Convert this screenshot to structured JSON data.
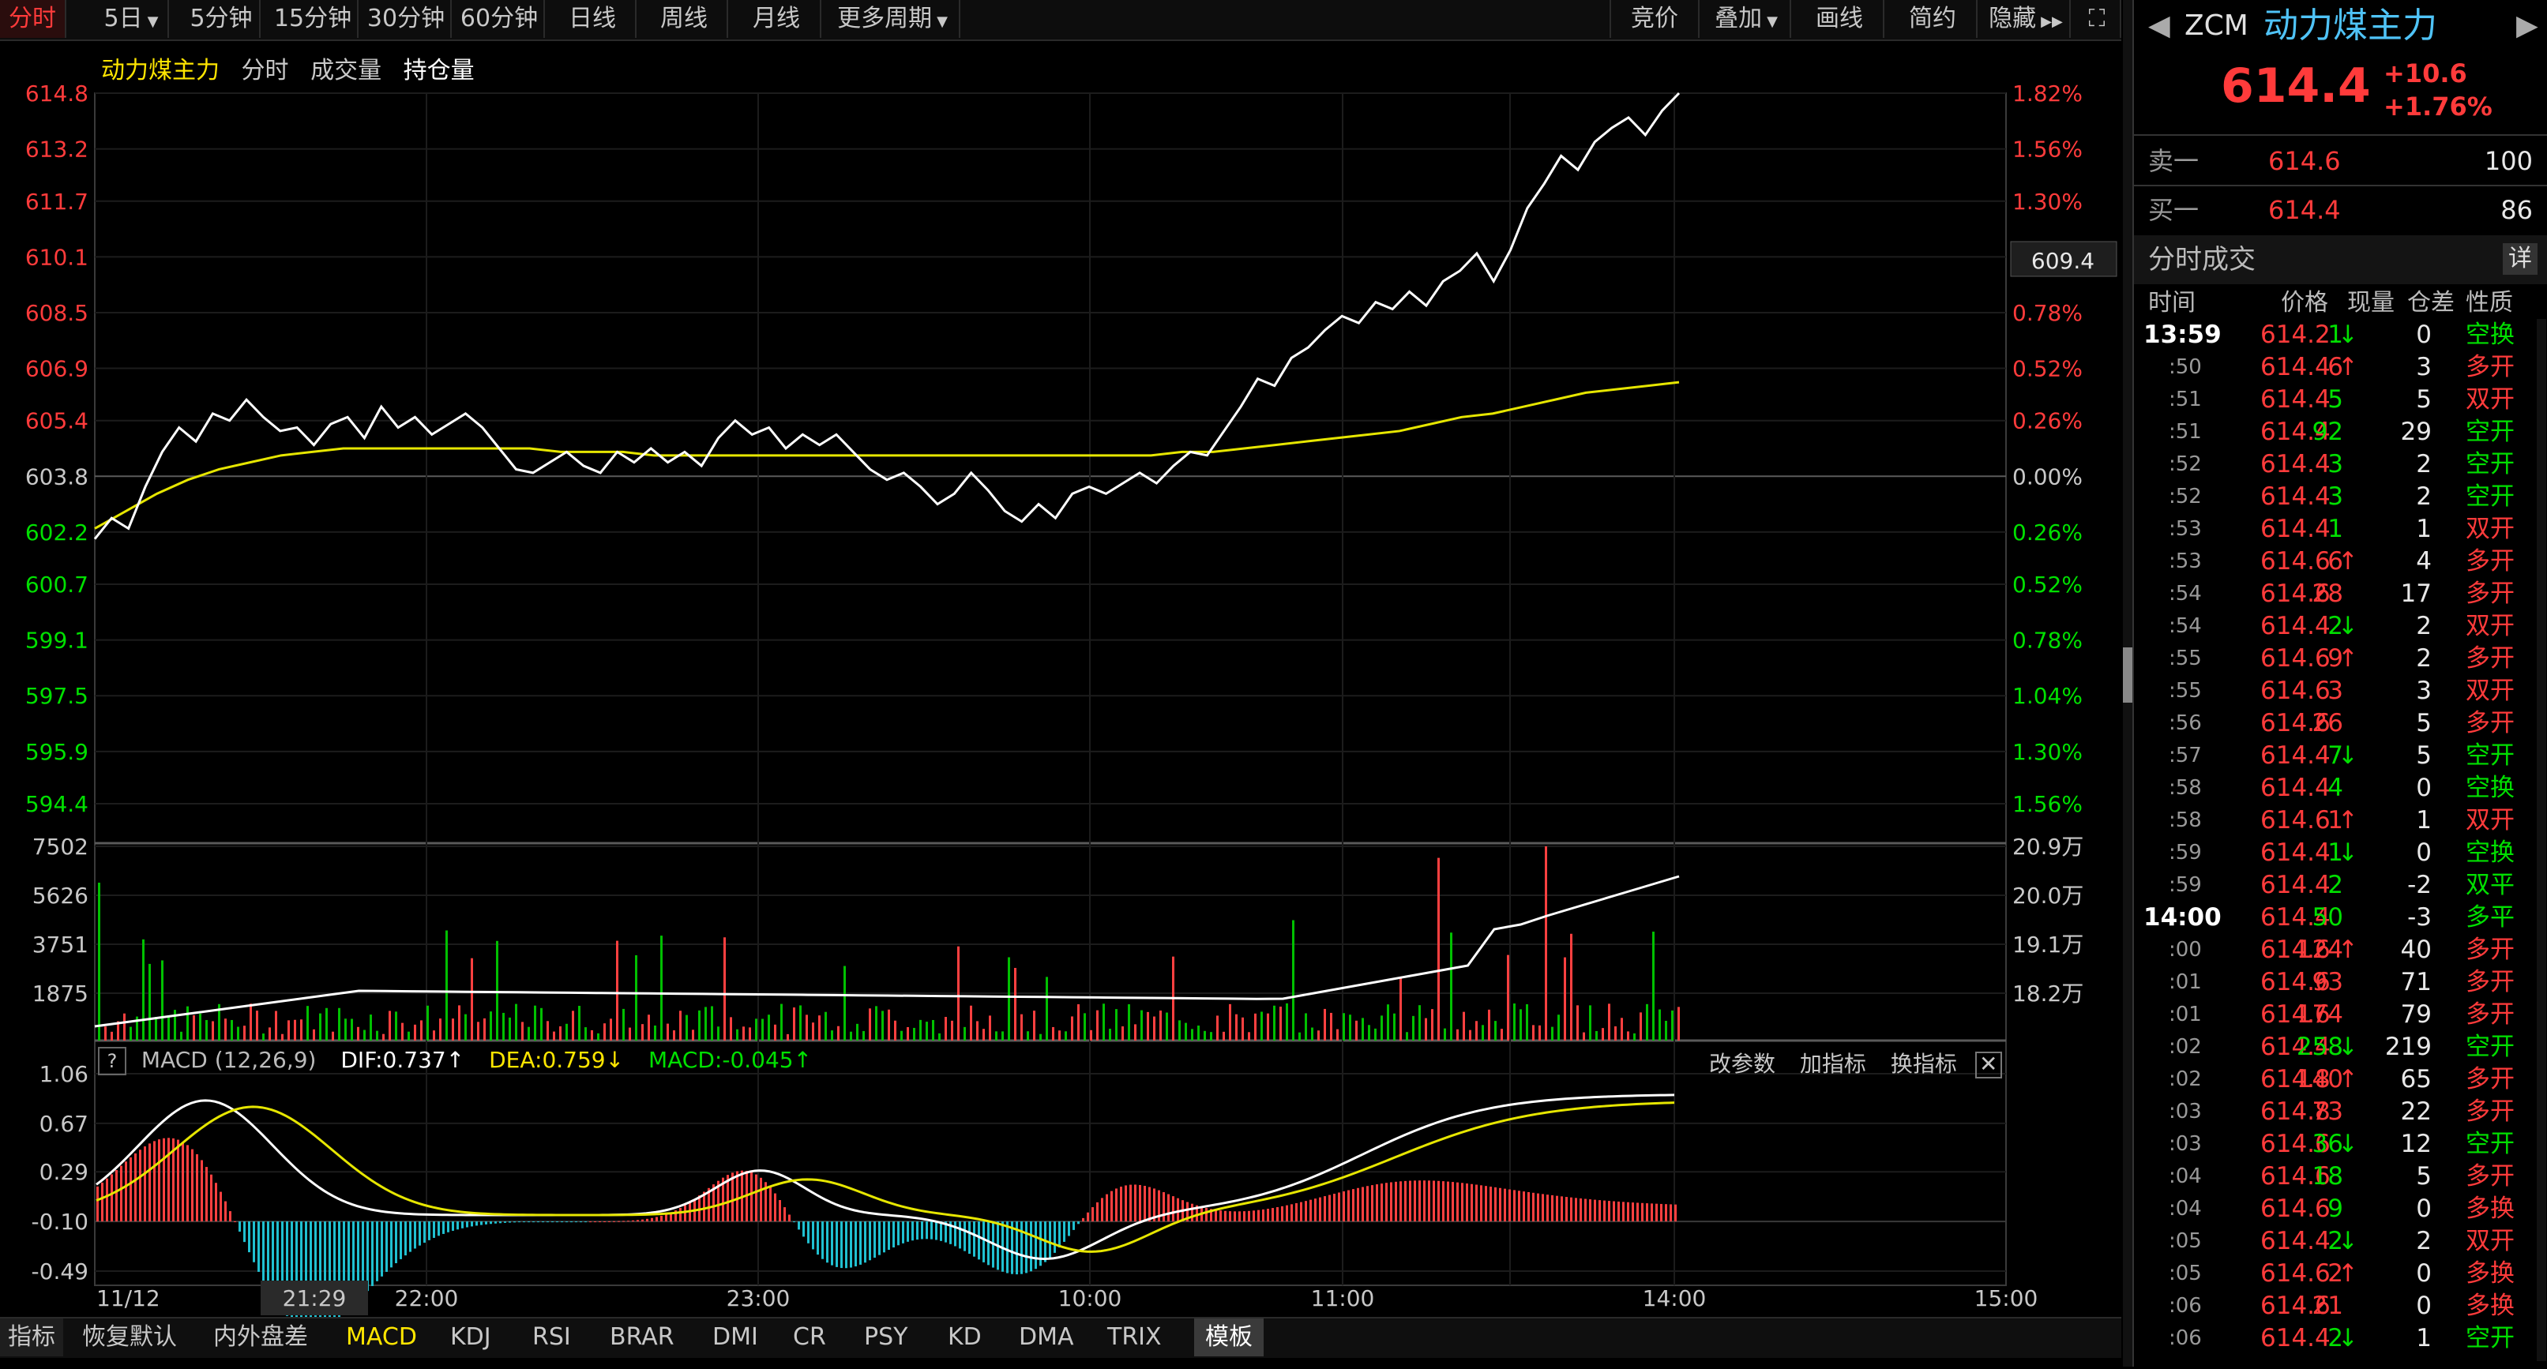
{
  "toolbar": {
    "periods": [
      "分时",
      "5日",
      "5分钟",
      "15分钟",
      "30分钟",
      "60分钟",
      "日线",
      "周线",
      "月线",
      "更多周期"
    ],
    "right": [
      "竞价",
      "叠加",
      "画线",
      "简约",
      "隐藏"
    ]
  },
  "chart_header": {
    "name": "动力煤主力",
    "items": [
      "分时",
      "成交量",
      "持仓量"
    ]
  },
  "price_axis": {
    "left": [
      "614.8",
      "613.2",
      "611.7",
      "610.1",
      "608.5",
      "606.9",
      "605.4",
      "603.8",
      "602.2",
      "600.7",
      "599.1",
      "597.5",
      "595.9",
      "594.4"
    ],
    "right": [
      "1.82%",
      "1.56%",
      "1.30%",
      "1.04%",
      "0.78%",
      "0.52%",
      "0.26%",
      "0.00%",
      "0.26%",
      "0.52%",
      "0.78%",
      "1.04%",
      "1.30%",
      "1.56%"
    ],
    "cursor_value": "609.4"
  },
  "volume_axis": {
    "left": [
      "7502",
      "5626",
      "3751",
      "1875"
    ],
    "right": [
      "20.9万",
      "20.0万",
      "19.1万",
      "18.2万"
    ]
  },
  "macd": {
    "title": "MACD (12,26,9)",
    "dif": "DIF:0.737↑",
    "dea": "DEA:0.759↓",
    "macd": "MACD:-0.045↑",
    "actions": [
      "改参数",
      "加指标",
      "换指标"
    ],
    "axis": [
      "1.06",
      "0.67",
      "0.29",
      "-0.10",
      "-0.49"
    ]
  },
  "time_axis": {
    "labels": [
      "11/12",
      "21:29",
      "22:00",
      "23:00",
      "10:00",
      "11:00",
      "14:00",
      "15:00"
    ]
  },
  "bottom_tabs": [
    "指标",
    "恢复默认",
    "内外盘差",
    "MACD",
    "KDJ",
    "RSI",
    "BRAR",
    "DMI",
    "CR",
    "PSY",
    "KD",
    "DMA",
    "TRIX",
    "模板"
  ],
  "quote": {
    "code": "ZCM",
    "name": "动力煤主力",
    "price": "614.4",
    "change": "+10.6",
    "change_pct": "+1.76%",
    "sell_label": "卖一",
    "sell_price": "614.6",
    "sell_qty": "100",
    "buy_label": "买一",
    "buy_price": "614.4",
    "buy_qty": "86"
  },
  "trades": {
    "title": "分时成交",
    "detail": "详",
    "headers": [
      "时间",
      "价格",
      "现量",
      "仓差",
      "性质"
    ],
    "rows": [
      {
        "t": "13:59",
        "p": "614.2",
        "a": "↓",
        "ac": "green",
        "q": "1",
        "qc": "green",
        "d": "0",
        "n": "空换",
        "nc": "green",
        "pc": "red"
      },
      {
        "t": ":50",
        "p": "614.4",
        "a": "↑",
        "ac": "red",
        "q": "6",
        "qc": "red",
        "d": "3",
        "n": "多开",
        "nc": "red",
        "pc": "red"
      },
      {
        "t": ":51",
        "p": "614.4",
        "a": "",
        "ac": "",
        "q": "5",
        "qc": "green",
        "d": "5",
        "n": "双开",
        "nc": "red",
        "pc": "red"
      },
      {
        "t": ":51",
        "p": "614.4",
        "a": "",
        "ac": "",
        "q": "92",
        "qc": "green",
        "d": "29",
        "n": "空开",
        "nc": "green",
        "pc": "red"
      },
      {
        "t": ":52",
        "p": "614.4",
        "a": "",
        "ac": "",
        "q": "3",
        "qc": "green",
        "d": "2",
        "n": "空开",
        "nc": "green",
        "pc": "red"
      },
      {
        "t": ":52",
        "p": "614.4",
        "a": "",
        "ac": "",
        "q": "3",
        "qc": "green",
        "d": "2",
        "n": "空开",
        "nc": "green",
        "pc": "red"
      },
      {
        "t": ":53",
        "p": "614.4",
        "a": "",
        "ac": "",
        "q": "1",
        "qc": "green",
        "d": "1",
        "n": "双开",
        "nc": "red",
        "pc": "red"
      },
      {
        "t": ":53",
        "p": "614.6",
        "a": "↑",
        "ac": "red",
        "q": "6",
        "qc": "red",
        "d": "4",
        "n": "多开",
        "nc": "red",
        "pc": "red"
      },
      {
        "t": ":54",
        "p": "614.6",
        "a": "",
        "ac": "",
        "q": "28",
        "qc": "red",
        "d": "17",
        "n": "多开",
        "nc": "red",
        "pc": "red"
      },
      {
        "t": ":54",
        "p": "614.4",
        "a": "↓",
        "ac": "green",
        "q": "2",
        "qc": "green",
        "d": "2",
        "n": "双开",
        "nc": "red",
        "pc": "red"
      },
      {
        "t": ":55",
        "p": "614.6",
        "a": "↑",
        "ac": "red",
        "q": "9",
        "qc": "red",
        "d": "2",
        "n": "多开",
        "nc": "red",
        "pc": "red"
      },
      {
        "t": ":55",
        "p": "614.6",
        "a": "",
        "ac": "",
        "q": "3",
        "qc": "red",
        "d": "3",
        "n": "双开",
        "nc": "red",
        "pc": "red"
      },
      {
        "t": ":56",
        "p": "614.6",
        "a": "",
        "ac": "",
        "q": "26",
        "qc": "red",
        "d": "5",
        "n": "多开",
        "nc": "red",
        "pc": "red"
      },
      {
        "t": ":57",
        "p": "614.4",
        "a": "↓",
        "ac": "green",
        "q": "7",
        "qc": "green",
        "d": "5",
        "n": "空开",
        "nc": "green",
        "pc": "red"
      },
      {
        "t": ":58",
        "p": "614.4",
        "a": "",
        "ac": "",
        "q": "4",
        "qc": "green",
        "d": "0",
        "n": "空换",
        "nc": "green",
        "pc": "red"
      },
      {
        "t": ":58",
        "p": "614.6",
        "a": "↑",
        "ac": "red",
        "q": "1",
        "qc": "red",
        "d": "1",
        "n": "双开",
        "nc": "red",
        "pc": "red"
      },
      {
        "t": ":59",
        "p": "614.4",
        "a": "↓",
        "ac": "green",
        "q": "1",
        "qc": "green",
        "d": "0",
        "n": "空换",
        "nc": "green",
        "pc": "red"
      },
      {
        "t": ":59",
        "p": "614.4",
        "a": "",
        "ac": "",
        "q": "2",
        "qc": "green",
        "d": "-2",
        "n": "双平",
        "nc": "green",
        "pc": "red"
      },
      {
        "t": "14:00",
        "p": "614.4",
        "a": "",
        "ac": "",
        "q": "50",
        "qc": "green",
        "d": "-3",
        "n": "多平",
        "nc": "green",
        "pc": "red"
      },
      {
        "t": ":00",
        "p": "614.6",
        "a": "↑",
        "ac": "red",
        "q": "124",
        "qc": "red",
        "d": "40",
        "n": "多开",
        "nc": "red",
        "pc": "red"
      },
      {
        "t": ":01",
        "p": "614.6",
        "a": "",
        "ac": "",
        "q": "93",
        "qc": "red",
        "d": "71",
        "n": "多开",
        "nc": "red",
        "pc": "red"
      },
      {
        "t": ":01",
        "p": "614.6",
        "a": "",
        "ac": "",
        "q": "174",
        "qc": "red",
        "d": "79",
        "n": "多开",
        "nc": "red",
        "pc": "red"
      },
      {
        "t": ":02",
        "p": "614.4",
        "a": "↓",
        "ac": "green",
        "q": "258",
        "qc": "green",
        "d": "219",
        "n": "空开",
        "nc": "green",
        "pc": "red"
      },
      {
        "t": ":02",
        "p": "614.8",
        "a": "↑",
        "ac": "red",
        "q": "140",
        "qc": "red",
        "d": "65",
        "n": "多开",
        "nc": "red",
        "pc": "red"
      },
      {
        "t": ":03",
        "p": "614.8",
        "a": "",
        "ac": "",
        "q": "73",
        "qc": "red",
        "d": "22",
        "n": "多开",
        "nc": "red",
        "pc": "red"
      },
      {
        "t": ":03",
        "p": "614.6",
        "a": "↓",
        "ac": "green",
        "q": "36",
        "qc": "green",
        "d": "12",
        "n": "空开",
        "nc": "green",
        "pc": "red"
      },
      {
        "t": ":04",
        "p": "614.6",
        "a": "",
        "ac": "",
        "q": "18",
        "qc": "green",
        "d": "5",
        "n": "多开",
        "nc": "red",
        "pc": "red"
      },
      {
        "t": ":04",
        "p": "614.6",
        "a": "",
        "ac": "",
        "q": "9",
        "qc": "green",
        "d": "0",
        "n": "多换",
        "nc": "red",
        "pc": "red"
      },
      {
        "t": ":05",
        "p": "614.4",
        "a": "↓",
        "ac": "green",
        "q": "2",
        "qc": "green",
        "d": "2",
        "n": "双开",
        "nc": "red",
        "pc": "red"
      },
      {
        "t": ":05",
        "p": "614.6",
        "a": "↑",
        "ac": "red",
        "q": "2",
        "qc": "red",
        "d": "0",
        "n": "多换",
        "nc": "red",
        "pc": "red"
      },
      {
        "t": ":06",
        "p": "614.6",
        "a": "",
        "ac": "",
        "q": "21",
        "qc": "red",
        "d": "0",
        "n": "多换",
        "nc": "red",
        "pc": "red"
      },
      {
        "t": ":06",
        "p": "614.4",
        "a": "↓",
        "ac": "green",
        "q": "2",
        "qc": "green",
        "d": "1",
        "n": "空开",
        "nc": "green",
        "pc": "red"
      }
    ]
  },
  "colors": {
    "up": "#ff3b3b",
    "down": "#00e000",
    "price_line": "#ffffff",
    "avg_line": "#e6e600",
    "macd_pos": "#ff4040",
    "macd_neg": "#20c0d0"
  },
  "chart_data": {
    "type": "line",
    "title": "动力煤主力",
    "prev_close": 603.8,
    "ylim": [
      594.4,
      614.8
    ],
    "price": [
      602.0,
      602.6,
      602.3,
      603.5,
      604.5,
      605.2,
      604.8,
      605.6,
      605.4,
      606.0,
      605.5,
      605.1,
      605.2,
      604.7,
      605.3,
      605.5,
      604.9,
      605.8,
      605.2,
      605.5,
      605.0,
      605.3,
      605.6,
      605.2,
      604.6,
      604.0,
      603.9,
      604.2,
      604.5,
      604.1,
      603.9,
      604.5,
      604.2,
      604.6,
      604.2,
      604.5,
      604.1,
      604.9,
      605.4,
      605.0,
      605.2,
      604.6,
      605.0,
      604.7,
      605.0,
      604.5,
      604.0,
      603.7,
      603.9,
      603.5,
      603.0,
      603.3,
      603.9,
      603.4,
      602.8,
      602.5,
      603.0,
      602.6,
      603.3,
      603.5,
      603.3,
      603.6,
      603.9,
      603.6,
      604.1,
      604.5,
      604.4,
      605.1,
      605.8,
      606.6,
      606.4,
      607.2,
      607.5,
      608.0,
      608.4,
      608.2,
      608.8,
      608.6,
      609.1,
      608.7,
      609.4,
      609.7,
      610.2,
      609.4,
      610.3,
      611.5,
      612.2,
      613.0,
      612.6,
      613.4,
      613.8,
      614.1,
      613.6,
      614.3,
      614.8
    ],
    "avg": [
      602.3,
      602.8,
      603.3,
      603.7,
      604.0,
      604.2,
      604.4,
      604.5,
      604.6,
      604.6,
      604.6,
      604.6,
      604.6,
      604.6,
      604.6,
      604.5,
      604.5,
      604.5,
      604.4,
      604.4,
      604.4,
      604.4,
      604.4,
      604.4,
      604.4,
      604.4,
      604.4,
      604.4,
      604.4,
      604.4,
      604.4,
      604.4,
      604.4,
      604.4,
      604.4,
      604.5,
      604.5,
      604.6,
      604.7,
      604.8,
      604.9,
      605.0,
      605.1,
      605.3,
      605.5,
      605.6,
      605.8,
      606.0,
      606.2,
      606.3,
      606.4,
      606.5
    ],
    "volume_axis": [
      1875,
      3751,
      5626,
      7502
    ],
    "open_interest_axis": [
      "18.2万",
      "19.1万",
      "20.0万",
      "20.9万"
    ],
    "macd_ylim": [
      -0.49,
      1.06
    ],
    "dif": 0.737,
    "dea": 0.759,
    "macd": -0.045
  }
}
